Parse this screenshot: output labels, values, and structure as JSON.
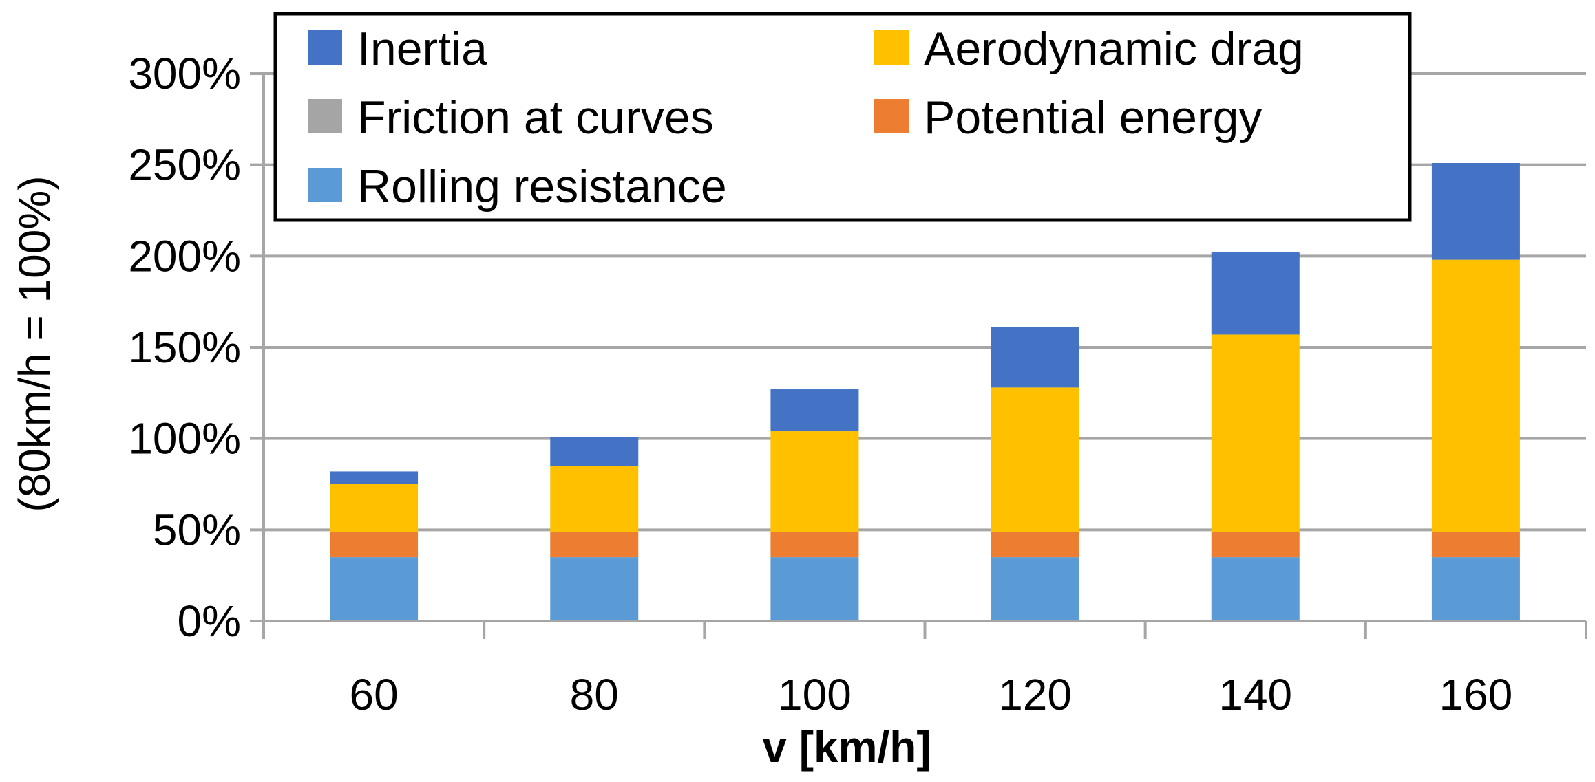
{
  "chart_data": {
    "type": "bar",
    "stacked": true,
    "title": "",
    "xlabel": "v [km/h]",
    "ylabel": "(80km/h = 100%)",
    "ylim": [
      0,
      300
    ],
    "yticks": [
      "0%",
      "50%",
      "100%",
      "150%",
      "200%",
      "250%",
      "300%"
    ],
    "ytick_values": [
      0,
      50,
      100,
      150,
      200,
      250,
      300
    ],
    "categories": [
      "60",
      "80",
      "100",
      "120",
      "140",
      "160"
    ],
    "grid": true,
    "legend_position": "top",
    "series": [
      {
        "name": "Rolling resistance",
        "color": "#5B9BD5",
        "values": [
          35,
          35,
          35,
          35,
          35,
          35
        ]
      },
      {
        "name": "Potential energy",
        "color": "#ED7D31",
        "values": [
          14,
          14,
          14,
          14,
          14,
          14
        ]
      },
      {
        "name": "Friction at curves",
        "color": "#A5A5A5",
        "values": [
          0,
          0,
          0,
          0,
          0,
          0
        ]
      },
      {
        "name": "Aerodynamic drag",
        "color": "#FFC000",
        "values": [
          26,
          36,
          55,
          79,
          108,
          149
        ]
      },
      {
        "name": "Inertia",
        "color": "#4472C4",
        "values": [
          7,
          16,
          23,
          33,
          45,
          53
        ]
      }
    ],
    "legend_order": [
      "Inertia",
      "Aerodynamic drag",
      "Friction at curves",
      "Potential energy",
      "Rolling resistance"
    ]
  }
}
